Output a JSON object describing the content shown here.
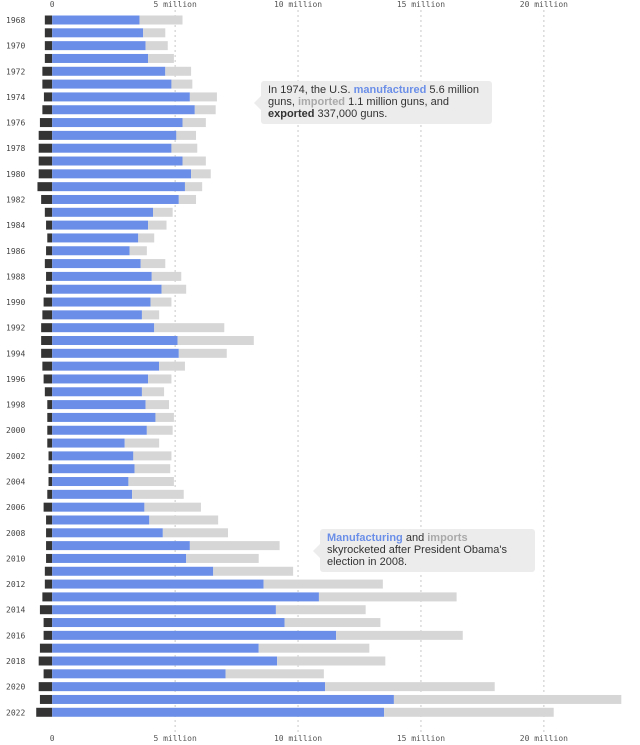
{
  "colors": {
    "manufactured": "#6b8fe8",
    "imported": "#d6d6d6",
    "exported": "#343434",
    "grid": "#c8c8c8"
  },
  "chart_data": {
    "type": "bar",
    "orientation": "horizontal",
    "stacked": true,
    "x_tick_values": [
      0,
      5000000,
      10000000,
      15000000,
      20000000
    ],
    "x_tick_labels": [
      "0",
      "5 million",
      "10 million",
      "15 million",
      "20 million"
    ],
    "xlim": [
      -700000,
      23300000
    ],
    "grid": "vertical dashed",
    "years": [
      1968,
      1969,
      1970,
      1971,
      1972,
      1973,
      1974,
      1975,
      1976,
      1977,
      1978,
      1979,
      1980,
      1981,
      1982,
      1983,
      1984,
      1985,
      1986,
      1987,
      1988,
      1989,
      1990,
      1991,
      1992,
      1993,
      1994,
      1995,
      1996,
      1997,
      1998,
      1999,
      2000,
      2001,
      2002,
      2003,
      2004,
      2005,
      2006,
      2007,
      2008,
      2009,
      2010,
      2011,
      2012,
      2013,
      2014,
      2015,
      2016,
      2017,
      2018,
      2019,
      2020,
      2021,
      2022
    ],
    "labeled_years": [
      1968,
      1970,
      1972,
      1974,
      1976,
      1978,
      1980,
      1982,
      1984,
      1986,
      1988,
      1990,
      1992,
      1994,
      1996,
      1998,
      2000,
      2002,
      2004,
      2006,
      2008,
      2010,
      2012,
      2014,
      2016,
      2018,
      2020,
      2022
    ],
    "series": [
      {
        "name": "manufactured",
        "values": [
          3550000,
          3700000,
          3800000,
          3900000,
          4600000,
          4850000,
          5600000,
          5800000,
          5300000,
          5050000,
          4850000,
          5300000,
          5650000,
          5400000,
          5150000,
          4100000,
          3900000,
          3500000,
          3150000,
          3600000,
          4050000,
          4450000,
          4000000,
          3650000,
          4150000,
          5100000,
          5150000,
          4350000,
          3900000,
          3650000,
          3800000,
          4200000,
          3850000,
          2950000,
          3300000,
          3350000,
          3100000,
          3250000,
          3750000,
          3950000,
          4500000,
          5600000,
          5450000,
          6550000,
          8600000,
          10850000,
          9100000,
          9450000,
          11550000,
          8400000,
          9150000,
          7050000,
          11100000,
          13900000,
          13500000
        ]
      },
      {
        "name": "imported",
        "values": [
          1750000,
          900000,
          900000,
          1050000,
          1050000,
          850000,
          1100000,
          850000,
          950000,
          800000,
          1050000,
          950000,
          800000,
          700000,
          700000,
          800000,
          750000,
          650000,
          700000,
          1000000,
          1200000,
          1000000,
          850000,
          700000,
          2850000,
          3100000,
          1950000,
          1050000,
          950000,
          900000,
          950000,
          750000,
          1050000,
          1400000,
          1550000,
          1450000,
          1850000,
          2100000,
          2300000,
          2800000,
          2650000,
          3650000,
          2950000,
          3250000,
          4850000,
          5600000,
          3650000,
          3900000,
          5150000,
          4500000,
          4400000,
          4000000,
          6900000,
          9250000,
          6900000
        ]
      },
      {
        "name": "exported",
        "values": [
          300000,
          300000,
          300000,
          300000,
          400000,
          400000,
          337000,
          400000,
          500000,
          550000,
          550000,
          550000,
          550000,
          600000,
          450000,
          300000,
          250000,
          200000,
          250000,
          300000,
          250000,
          250000,
          350000,
          400000,
          450000,
          450000,
          450000,
          400000,
          350000,
          300000,
          200000,
          200000,
          200000,
          200000,
          150000,
          150000,
          150000,
          200000,
          350000,
          250000,
          250000,
          250000,
          250000,
          300000,
          300000,
          400000,
          500000,
          350000,
          350000,
          500000,
          550000,
          350000,
          550000,
          500000,
          650000
        ]
      }
    ]
  },
  "annotations": {
    "note_1974": {
      "p1": "In 1974, the U.S. ",
      "manufactured": "manufactured",
      "p2": " 5.6 million guns, ",
      "imported": "imported",
      "p3": " 1.1 million guns, and ",
      "exported": "exported",
      "p4": " 337,000 guns."
    },
    "note_2008": {
      "manufacturing": "Manufacturing",
      "p1": " and ",
      "imports": "imports",
      "p2": " skyrocketed after President Obama's election in 2008."
    }
  }
}
